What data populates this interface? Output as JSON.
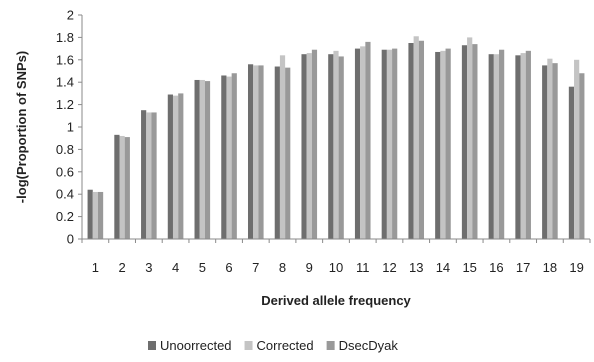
{
  "chart_data": {
    "type": "bar",
    "title": "",
    "xlabel": "Derived allele frequency",
    "ylabel": "-log(Proportion of SNPs)",
    "ylim": [
      0,
      2
    ],
    "yticks": [
      "0",
      "0.2",
      "0.4",
      "0.6",
      "0.8",
      "1",
      "1.2",
      "1.4",
      "1.6",
      "1.8",
      "2"
    ],
    "categories": [
      "1",
      "2",
      "3",
      "4",
      "5",
      "6",
      "7",
      "8",
      "9",
      "10",
      "11",
      "12",
      "13",
      "14",
      "15",
      "16",
      "17",
      "18",
      "19"
    ],
    "grid": false,
    "legend_position": "bottom",
    "series": [
      {
        "name": "Unoorrected",
        "color": "#6e6e6e",
        "values": [
          0.44,
          0.93,
          1.15,
          1.29,
          1.42,
          1.46,
          1.56,
          1.54,
          1.65,
          1.65,
          1.7,
          1.69,
          1.75,
          1.67,
          1.73,
          1.65,
          1.64,
          1.55,
          1.36
        ]
      },
      {
        "name": "Corrected",
        "color": "#c4c4c4",
        "values": [
          0.42,
          0.92,
          1.13,
          1.28,
          1.42,
          1.45,
          1.55,
          1.64,
          1.66,
          1.68,
          1.72,
          1.69,
          1.81,
          1.68,
          1.8,
          1.65,
          1.66,
          1.61,
          1.6
        ]
      },
      {
        "name": "DsecDyak",
        "color": "#999999",
        "values": [
          0.42,
          0.91,
          1.13,
          1.3,
          1.41,
          1.48,
          1.55,
          1.53,
          1.69,
          1.63,
          1.76,
          1.7,
          1.77,
          1.7,
          1.74,
          1.69,
          1.68,
          1.57,
          1.48
        ]
      }
    ]
  }
}
